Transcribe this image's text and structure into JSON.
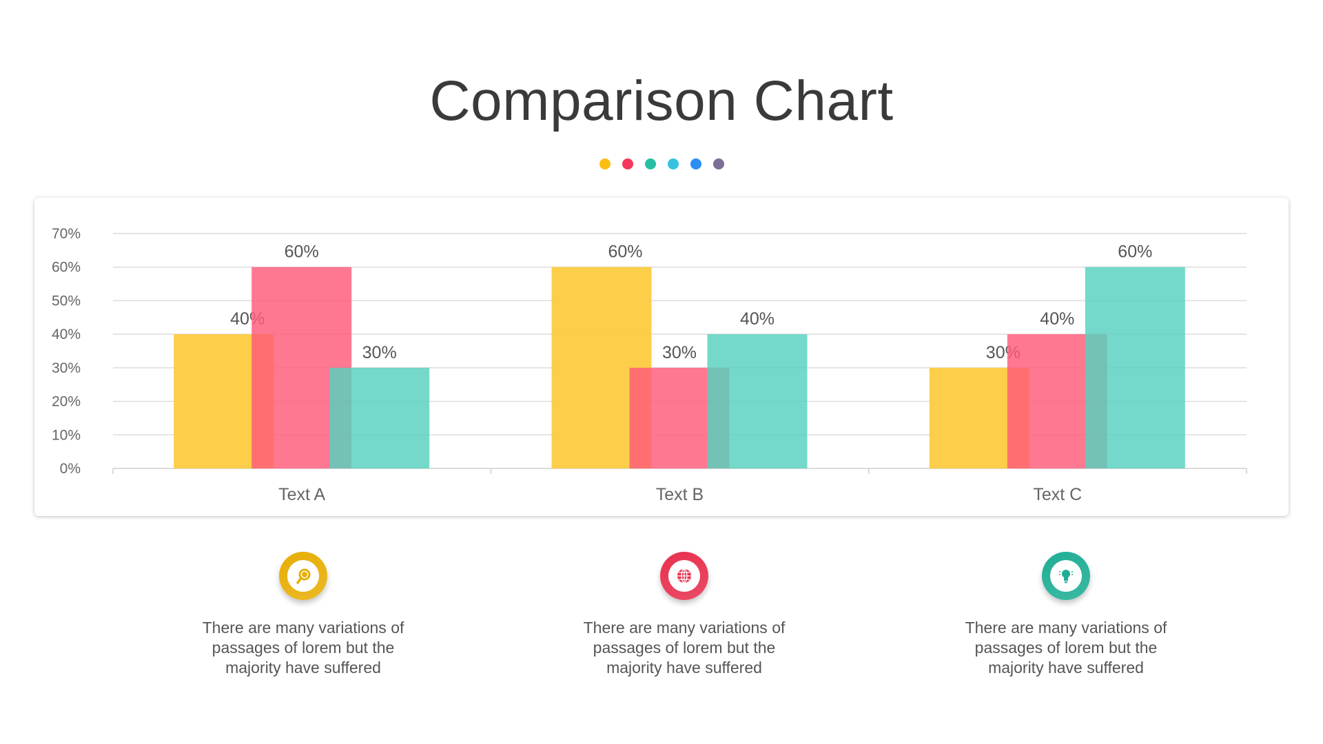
{
  "title": "Comparison Chart",
  "dot_colors": [
    "#FDBE13",
    "#F7385A",
    "#26BFA5",
    "#35C3E0",
    "#2A8EF5",
    "#7B6F98"
  ],
  "chart_data": {
    "type": "bar",
    "categories": [
      "Text A",
      "Text B",
      "Text C"
    ],
    "series": [
      {
        "values": [
          40,
          60,
          30
        ],
        "color": "#FDCB3F"
      },
      {
        "values": [
          60,
          30,
          40
        ],
        "color": "#FF5A7A"
      },
      {
        "values": [
          30,
          40,
          60
        ],
        "color": "#55D1BE"
      }
    ],
    "data_labels": [
      [
        "40%",
        "60%",
        "30%"
      ],
      [
        "60%",
        "30%",
        "40%"
      ],
      [
        "30%",
        "40%",
        "60%"
      ]
    ],
    "ylim": [
      0,
      70
    ],
    "yticks": [
      "0%",
      "10%",
      "20%",
      "30%",
      "40%",
      "50%",
      "60%",
      "70%"
    ],
    "grid": true,
    "overlapping_bars": true
  },
  "items": [
    {
      "icon": "magnifier-icon",
      "color": "#E8AE05",
      "text": "There are many variations of passages of lorem but the majority have suffered"
    },
    {
      "icon": "globe-icon",
      "color": "#E8304E",
      "text": "There are many variations of passages of lorem but the majority have suffered"
    },
    {
      "icon": "lightbulb-icon",
      "color": "#1FAE95",
      "text": "There are many variations of passages of lorem but the majority have suffered"
    }
  ]
}
